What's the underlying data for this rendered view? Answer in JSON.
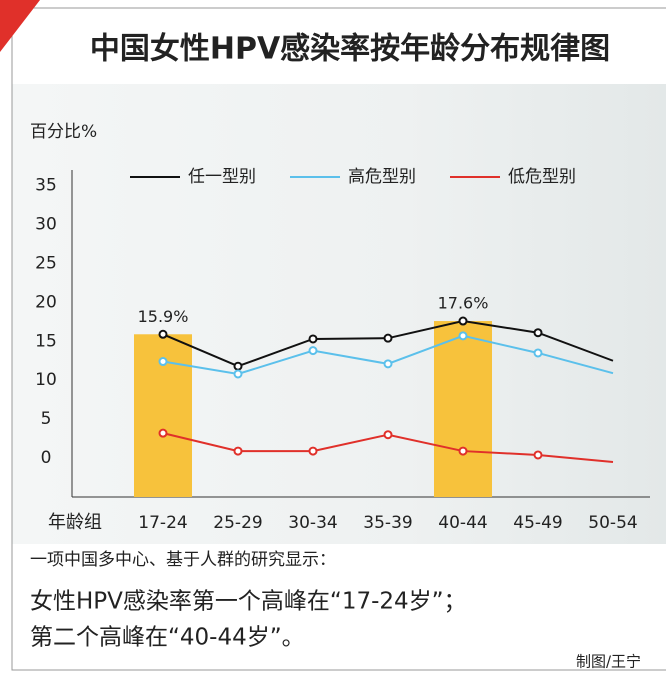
{
  "chart_data": {
    "type": "line",
    "title": "中国女性HPV感染率按年龄分布规律图",
    "y_label": "百分比%",
    "x_label": "年龄组",
    "categories": [
      "17-24",
      "25-29",
      "30-34",
      "35-39",
      "40-44",
      "45-49",
      "50-54"
    ],
    "series": [
      {
        "name": "任一型别",
        "color": "#111111",
        "values": [
          15.9,
          11.8,
          15.3,
          15.4,
          17.6,
          16.1,
          12.5
        ]
      },
      {
        "name": "高危型别",
        "color": "#5bc0eb",
        "values": [
          12.4,
          10.8,
          13.8,
          12.1,
          15.7,
          13.5,
          10.9
        ]
      },
      {
        "name": "低危型别",
        "color": "#e0302a",
        "values": [
          3.2,
          0.9,
          0.9,
          3.0,
          0.9,
          0.4,
          -0.5
        ]
      }
    ],
    "bars": {
      "color": "#f7c23c",
      "values": [
        15.9,
        null,
        null,
        null,
        17.6,
        null,
        null
      ],
      "value_labels": [
        "15.9%",
        null,
        null,
        null,
        "17.6%",
        null,
        null
      ]
    },
    "ylim": [
      -5,
      37
    ],
    "yticks": [
      0,
      5,
      10,
      15,
      20,
      25,
      30,
      35
    ],
    "grid": false
  },
  "notes": {
    "intro": "一项中国多中心、基于人群的研究显示：",
    "lines": [
      "女性HPV感染率第一个高峰在“17-24岁”；",
      "第二个高峰在“40-44岁”。"
    ],
    "credit": "制图/王宁"
  }
}
